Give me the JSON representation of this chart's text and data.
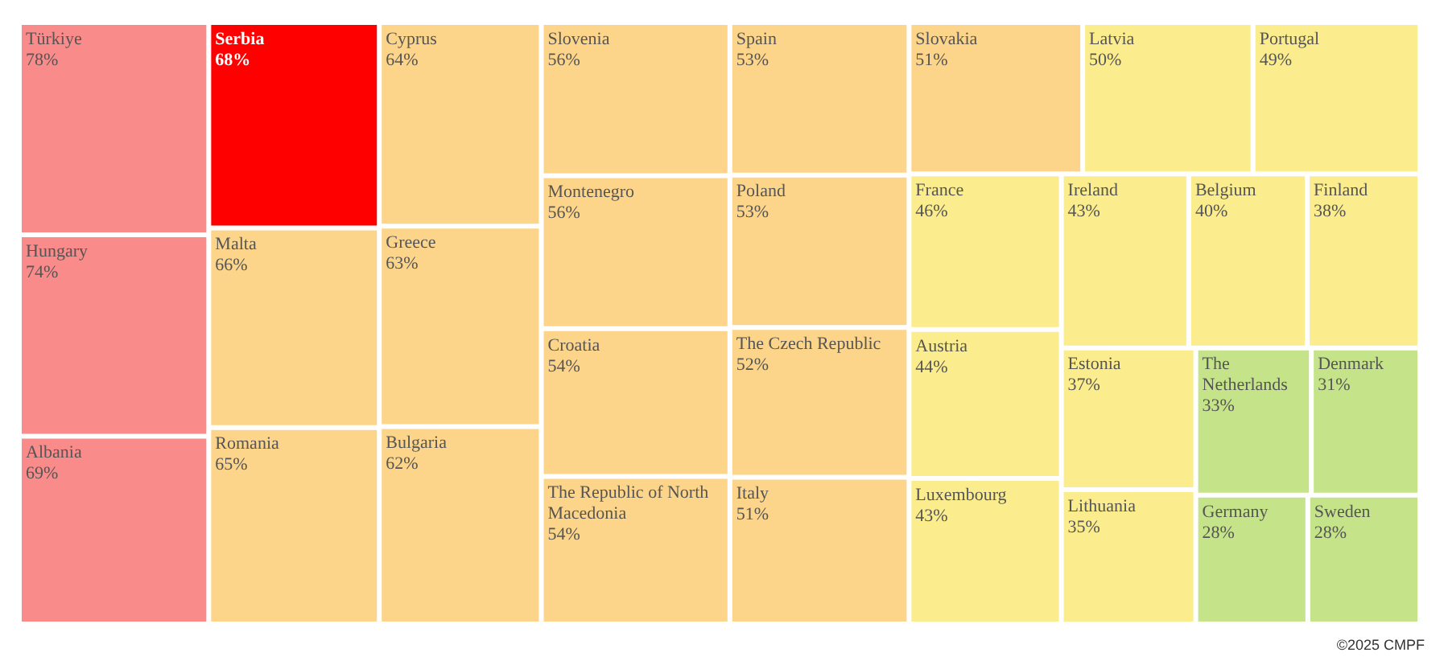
{
  "chart_data": {
    "type": "other",
    "categories": [
      "Türkiye",
      "Hungary",
      "Albania",
      "Serbia",
      "Malta",
      "Romania",
      "Cyprus",
      "Greece",
      "Bulgaria",
      "Slovenia",
      "Montenegro",
      "Croatia",
      "The Republic of North Macedonia",
      "Spain",
      "Poland",
      "The Czech Republic",
      "Italy",
      "Slovakia",
      "Latvia",
      "Portugal",
      "France",
      "Austria",
      "Luxembourg",
      "Ireland",
      "Belgium",
      "Finland",
      "Estonia",
      "Lithuania",
      "The Netherlands",
      "Denmark",
      "Germany",
      "Sweden"
    ],
    "values": [
      78,
      74,
      69,
      68,
      66,
      65,
      64,
      63,
      62,
      56,
      56,
      54,
      54,
      53,
      53,
      52,
      51,
      51,
      50,
      49,
      46,
      44,
      43,
      43,
      40,
      38,
      37,
      35,
      33,
      31,
      28,
      28
    ],
    "value_labels": [
      "78%",
      "74%",
      "69%",
      "68%",
      "66%",
      "65%",
      "64%",
      "63%",
      "62%",
      "56%",
      "56%",
      "54%",
      "54%",
      "53%",
      "53%",
      "52%",
      "51%",
      "51%",
      "50%",
      "49%",
      "46%",
      "44%",
      "43%",
      "43%",
      "40%",
      "38%",
      "37%",
      "35%",
      "33%",
      "31%",
      "28%",
      "28%"
    ],
    "colors": [
      "#f98b8b",
      "#f98b8b",
      "#f98b8b",
      "#ff0000",
      "#fdd58a",
      "#fdd58a",
      "#fdd58a",
      "#fdd58a",
      "#fdd58a",
      "#fdd58a",
      "#fdd58a",
      "#fdd58a",
      "#fdd58a",
      "#fdd58a",
      "#fdd58a",
      "#fdd58a",
      "#fdd58a",
      "#fdd58a",
      "#fbed8d",
      "#fbed8d",
      "#fbed8d",
      "#fbed8d",
      "#fbed8d",
      "#fbed8d",
      "#fbed8d",
      "#fbed8d",
      "#fbed8d",
      "#fbed8d",
      "#c5e48a",
      "#c5e48a",
      "#c5e48a",
      "#c5e48a"
    ],
    "annotations": [
      "©2025 CMPF"
    ]
  }
}
